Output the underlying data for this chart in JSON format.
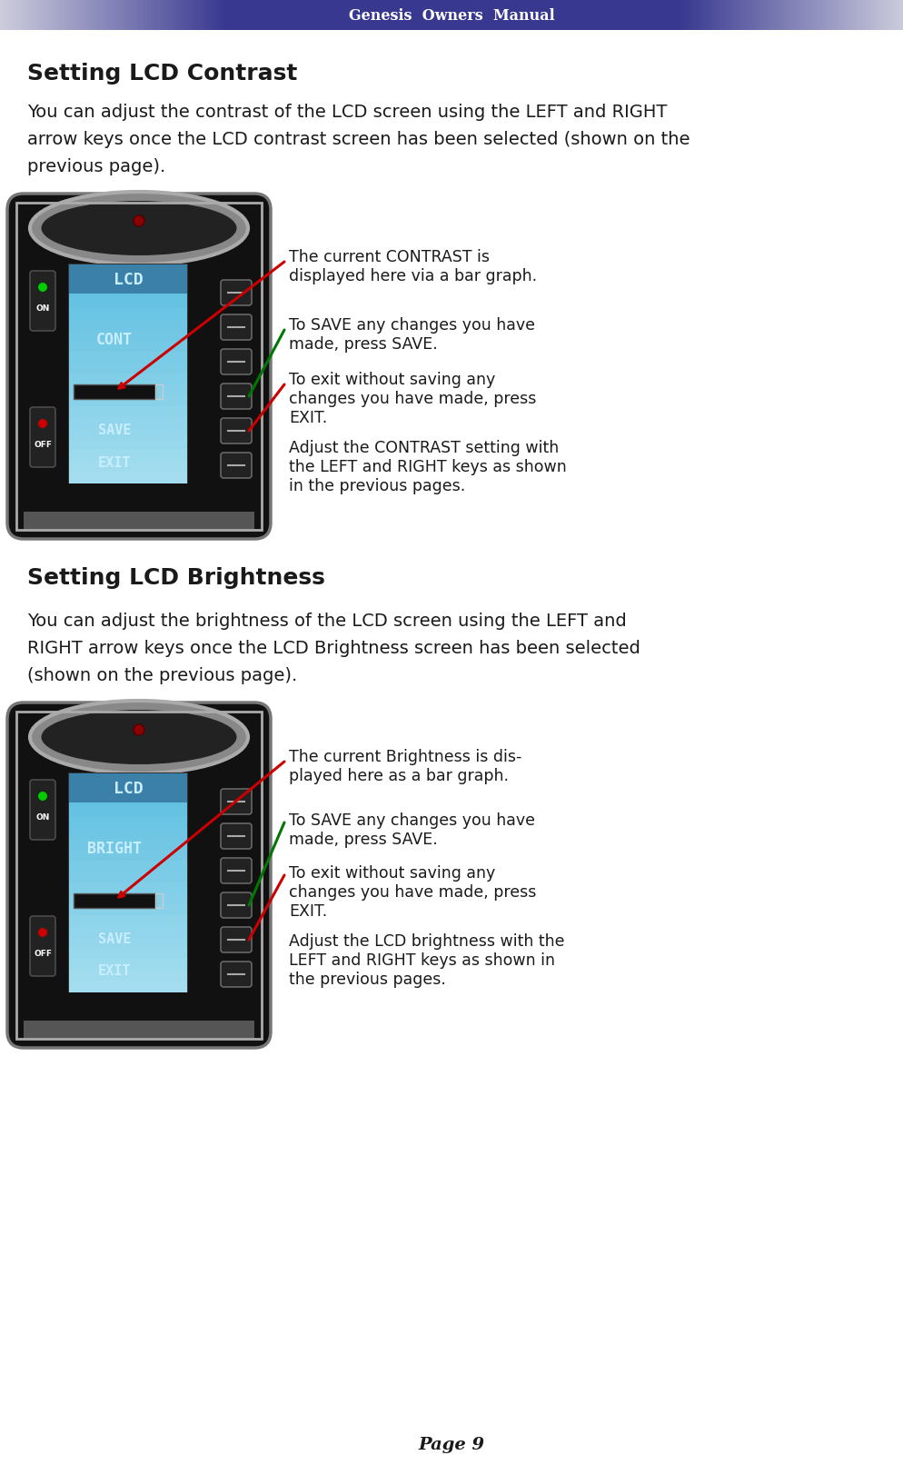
{
  "header_text": "Genesis  Owners  Manual",
  "page_bg": "#ffffff",
  "title1": "Setting LCD Contrast",
  "body1_lines": [
    "You can adjust the contrast of the LCD screen using the LEFT and RIGHT",
    "arrow keys once the LCD contrast screen has been selected (shown on the",
    "previous page)."
  ],
  "title2": "Setting LCD Brightness",
  "body2_lines": [
    "You can adjust the brightness of the LCD screen using the LEFT and",
    "RIGHT arrow keys once the LCD Brightness screen has been selected",
    "(shown on the previous page)."
  ],
  "annot1_1": "The current CONTRAST is\ndisplayed here via a bar graph.",
  "annot1_2": "To SAVE any changes you have\nmade, press SAVE.",
  "annot1_3": "To exit without saving any\nchanges you have made, press\nEXIT.",
  "annot1_4": "Adjust the CONTRAST setting with\nthe LEFT and RIGHT keys as shown\nin the previous pages.",
  "annot2_1": "The current Brightness is dis-\nplayed here as a bar graph.",
  "annot2_2": "To SAVE any changes you have\nmade, press SAVE.",
  "annot2_3": "To exit without saving any\nchanges you have made, press\nEXIT.",
  "annot2_4": "Adjust the LCD brightness with the\nLEFT and RIGHT keys as shown in\nthe previous pages.",
  "page_num": "Page 9",
  "text_color": "#1a1a1a",
  "red_color": "#cc0000",
  "green_color": "#007700",
  "lcd_bg_top": "#5bc8e8",
  "lcd_bg_bot": "#a8dff0",
  "lcd_header_bg": "#4a9ab8",
  "lcd_text_color": "#c8eeff",
  "device_body": "#1a1a1a",
  "device_silver": "#aaaaaa",
  "btn_color": "#2a2a2a",
  "btn_edge": "#666666"
}
